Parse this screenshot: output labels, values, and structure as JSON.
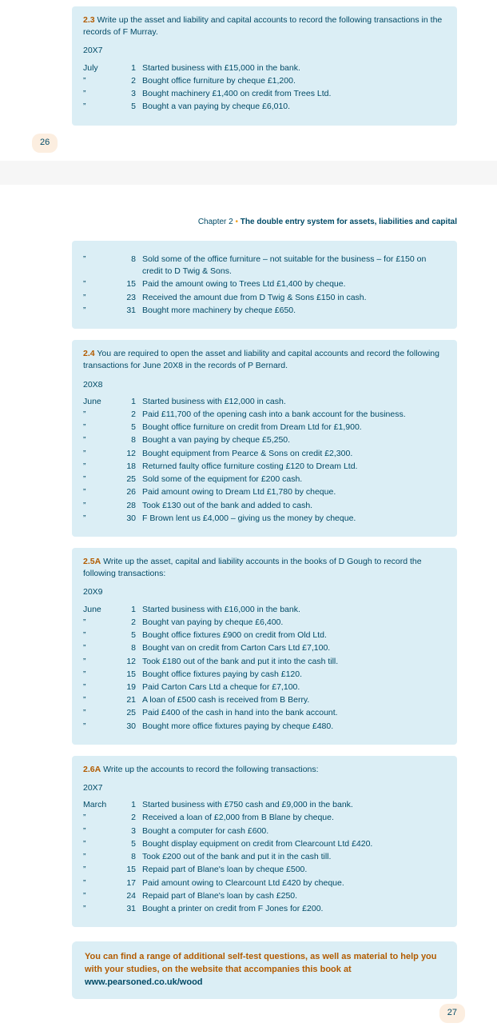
{
  "top": {
    "exercise": {
      "num": "2.3",
      "intro": "Write up the asset and liability and capital accounts to record the following transactions in the records of F Murray.",
      "year": "20X7",
      "rows": [
        {
          "m": "July",
          "d": "1",
          "t": "Started business with £15,000 in the bank."
        },
        {
          "m": "”",
          "d": "2",
          "t": "Bought office furniture by cheque £1,200."
        },
        {
          "m": "”",
          "d": "3",
          "t": "Bought machinery £1,400 on credit from Trees Ltd."
        },
        {
          "m": "”",
          "d": "5",
          "t": "Bought a van paying by cheque £6,010."
        }
      ]
    },
    "pagenum": "26"
  },
  "bottom": {
    "chapter_label": "Chapter 2",
    "chapter_title": "The double entry system for assets, liabilities and capital",
    "cont_rows": [
      {
        "m": "”",
        "d": "8",
        "t": "Sold some of the office furniture – not suitable for the business – for £150 on credit to D Twig & Sons."
      },
      {
        "m": "”",
        "d": "15",
        "t": "Paid the amount owing to Trees Ltd £1,400 by cheque."
      },
      {
        "m": "”",
        "d": "23",
        "t": "Received the amount due from D Twig & Sons £150 in cash."
      },
      {
        "m": "”",
        "d": "31",
        "t": "Bought more machinery by cheque £650."
      }
    ],
    "ex24": {
      "num": "2.4",
      "intro": "You are required to open the asset and liability and capital accounts and record the following transactions for June 20X8 in the records of P Bernard.",
      "year": "20X8",
      "rows": [
        {
          "m": "June",
          "d": "1",
          "t": "Started business with £12,000 in cash."
        },
        {
          "m": "”",
          "d": "2",
          "t": "Paid £11,700 of the opening cash into a bank account for the business."
        },
        {
          "m": "”",
          "d": "5",
          "t": "Bought office furniture on credit from Dream Ltd for £1,900."
        },
        {
          "m": "”",
          "d": "8",
          "t": "Bought a van paying by cheque £5,250."
        },
        {
          "m": "”",
          "d": "12",
          "t": "Bought equipment from Pearce & Sons on credit £2,300."
        },
        {
          "m": "”",
          "d": "18",
          "t": "Returned faulty office furniture costing £120 to Dream Ltd."
        },
        {
          "m": "”",
          "d": "25",
          "t": "Sold some of the equipment for £200 cash."
        },
        {
          "m": "”",
          "d": "26",
          "t": "Paid amount owing to Dream Ltd £1,780 by cheque."
        },
        {
          "m": "”",
          "d": "28",
          "t": "Took £130 out of the bank and added to cash."
        },
        {
          "m": "”",
          "d": "30",
          "t": "F Brown lent us £4,000 – giving us the money by cheque."
        }
      ]
    },
    "ex25a": {
      "num": "2.5A",
      "intro": "Write up the asset, capital and liability accounts in the books of D Gough to record the following transactions:",
      "year": "20X9",
      "rows": [
        {
          "m": "June",
          "d": "1",
          "t": "Started business with £16,000 in the bank."
        },
        {
          "m": "”",
          "d": "2",
          "t": "Bought van paying by cheque £6,400."
        },
        {
          "m": "”",
          "d": "5",
          "t": "Bought office fixtures £900 on credit from Old Ltd."
        },
        {
          "m": "”",
          "d": "8",
          "t": "Bought van on credit from Carton Cars Ltd £7,100."
        },
        {
          "m": "”",
          "d": "12",
          "t": "Took £180 out of the bank and put it into the cash till."
        },
        {
          "m": "”",
          "d": "15",
          "t": "Bought office fixtures paying by cash £120."
        },
        {
          "m": "”",
          "d": "19",
          "t": "Paid Carton Cars Ltd a cheque for £7,100."
        },
        {
          "m": "”",
          "d": "21",
          "t": "A loan of £500 cash is received from B Berry."
        },
        {
          "m": "”",
          "d": "25",
          "t": "Paid £400 of the cash in hand into the bank account."
        },
        {
          "m": "”",
          "d": "30",
          "t": "Bought more office fixtures paying by cheque £480."
        }
      ]
    },
    "ex26a": {
      "num": "2.6A",
      "intro": "Write up the accounts to record the following transactions:",
      "year": "20X7",
      "rows": [
        {
          "m": "March",
          "d": "1",
          "t": "Started business with £750 cash and £9,000 in the bank."
        },
        {
          "m": "”",
          "d": "2",
          "t": "Received a loan of £2,000 from B Blane by cheque."
        },
        {
          "m": "”",
          "d": "3",
          "t": "Bought a computer for cash £600."
        },
        {
          "m": "”",
          "d": "5",
          "t": "Bought display equipment on credit from Clearcount Ltd £420."
        },
        {
          "m": "”",
          "d": "8",
          "t": "Took £200 out of the bank and put it in the cash till."
        },
        {
          "m": "”",
          "d": "15",
          "t": "Repaid part of Blane's loan by cheque £500."
        },
        {
          "m": "”",
          "d": "17",
          "t": "Paid amount owing to Clearcount Ltd £420 by cheque."
        },
        {
          "m": "”",
          "d": "24",
          "t": "Repaid part of Blane's loan by cash £250."
        },
        {
          "m": "”",
          "d": "31",
          "t": "Bought a printer on credit from F Jones for £200."
        }
      ]
    },
    "note_pre": "You can find a range of additional self-test questions, as well as material to help you with your studies, on the website that accompanies this book at ",
    "note_url": "www.pearsoned.co.uk/wood",
    "pagenum": "27"
  }
}
